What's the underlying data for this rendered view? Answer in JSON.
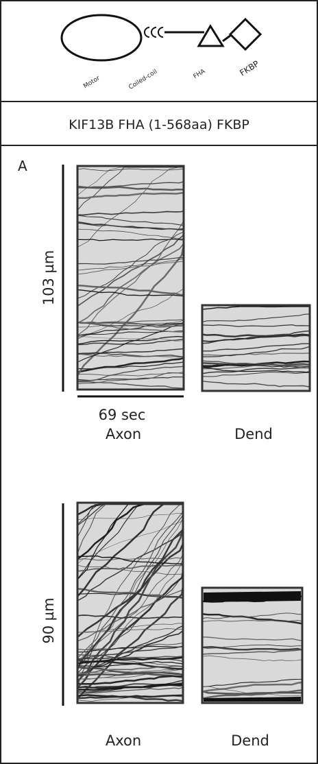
{
  "diagram": {
    "labels": {
      "motor": "Motor",
      "coiled_coil": "Coiled-coil",
      "fha": "FHA",
      "fkbp": "FKBP"
    }
  },
  "construct_title": "KIF13B FHA (1-568aa) FKBP",
  "panel": {
    "label": "A",
    "rows": [
      {
        "scale": "103 µm",
        "time": "69 sec",
        "columns": [
          "Axon",
          "Dend"
        ]
      },
      {
        "scale": "90 µm",
        "columns": [
          "Axon",
          "Dend"
        ]
      }
    ]
  }
}
